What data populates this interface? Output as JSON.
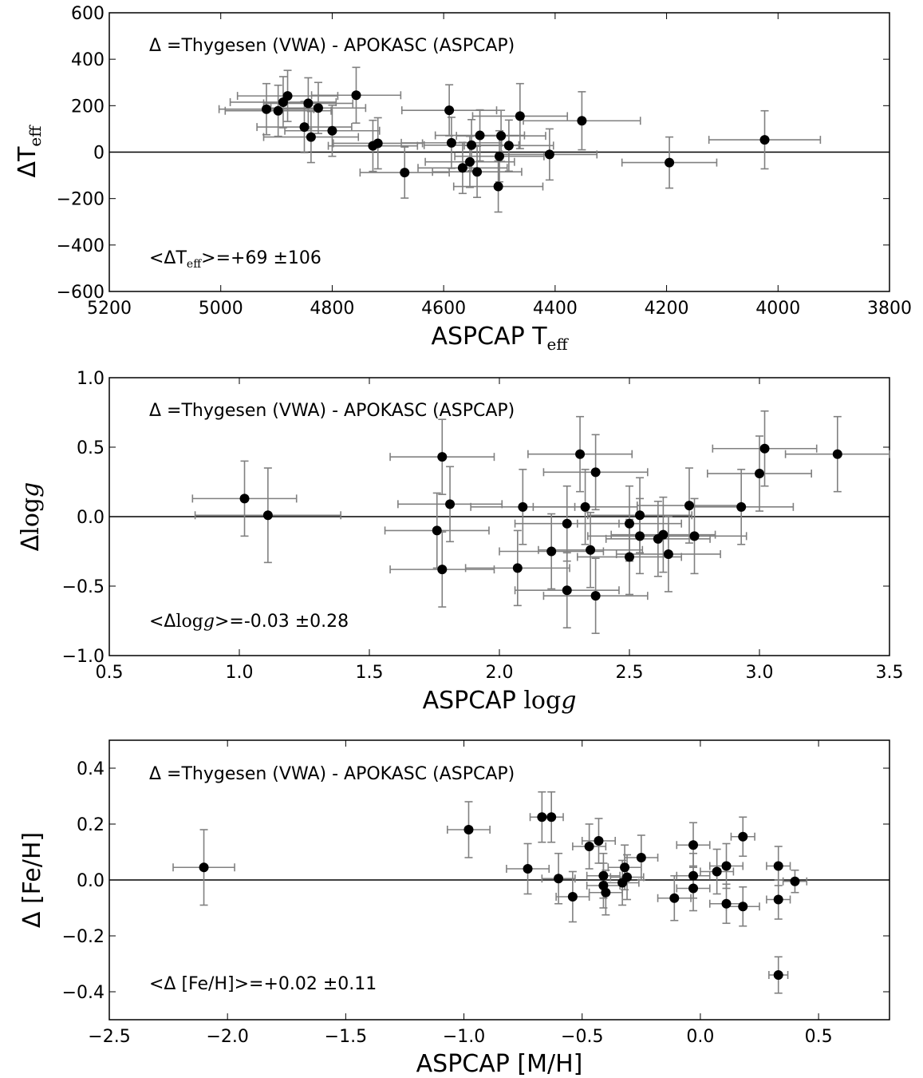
{
  "chart_data": [
    {
      "type": "scatter",
      "xlabel_parts": [
        "ASPCAP T",
        "eff"
      ],
      "ylabel_parts": [
        "ΔT",
        "eff"
      ],
      "xlim": [
        5200,
        3800
      ],
      "ylim": [
        -600,
        600
      ],
      "xticks": [
        5200,
        5000,
        4800,
        4600,
        4400,
        4200,
        4000,
        3800
      ],
      "xtick_labels": [
        "5200",
        "5000",
        "4800",
        "4600",
        "4400",
        "4200",
        "4000",
        "3800"
      ],
      "yticks": [
        -600,
        -400,
        -200,
        0,
        200,
        400,
        600
      ],
      "ytick_labels": [
        "−600",
        "−400",
        "−200",
        "0",
        "200",
        "400",
        "600"
      ],
      "reference_line": 0,
      "annotation": "Δ =Thygesen (VWA) - APOKASC (ASPCAP)",
      "mean_text_parts": [
        "<ΔT",
        "eff",
        ">=+69 ±106"
      ],
      "points": [
        {
          "x": 4918,
          "y": 185,
          "xerr": 85,
          "yerr": 110
        },
        {
          "x": 4897,
          "y": 178,
          "xerr": 95,
          "yerr": 110
        },
        {
          "x": 4888,
          "y": 215,
          "xerr": 95,
          "yerr": 110
        },
        {
          "x": 4880,
          "y": 242,
          "xerr": 90,
          "yerr": 110
        },
        {
          "x": 4850,
          "y": 108,
          "xerr": 85,
          "yerr": 110
        },
        {
          "x": 4843,
          "y": 210,
          "xerr": 80,
          "yerr": 110
        },
        {
          "x": 4838,
          "y": 65,
          "xerr": 85,
          "yerr": 110
        },
        {
          "x": 4825,
          "y": 190,
          "xerr": 85,
          "yerr": 110
        },
        {
          "x": 4800,
          "y": 92,
          "xerr": 85,
          "yerr": 110
        },
        {
          "x": 4757,
          "y": 245,
          "xerr": 80,
          "yerr": 120
        },
        {
          "x": 4727,
          "y": 27,
          "xerr": 80,
          "yerr": 110
        },
        {
          "x": 4718,
          "y": 38,
          "xerr": 80,
          "yerr": 110
        },
        {
          "x": 4670,
          "y": -88,
          "xerr": 80,
          "yerr": 110
        },
        {
          "x": 4590,
          "y": 180,
          "xerr": 85,
          "yerr": 110
        },
        {
          "x": 4586,
          "y": 40,
          "xerr": 90,
          "yerr": 110
        },
        {
          "x": 4566,
          "y": -68,
          "xerr": 80,
          "yerr": 110
        },
        {
          "x": 4553,
          "y": -42,
          "xerr": 80,
          "yerr": 110
        },
        {
          "x": 4550,
          "y": 30,
          "xerr": 85,
          "yerr": 110
        },
        {
          "x": 4540,
          "y": -85,
          "xerr": 80,
          "yerr": 110
        },
        {
          "x": 4535,
          "y": 72,
          "xerr": 80,
          "yerr": 110
        },
        {
          "x": 4502,
          "y": -148,
          "xerr": 80,
          "yerr": 110
        },
        {
          "x": 4500,
          "y": -18,
          "xerr": 80,
          "yerr": 110
        },
        {
          "x": 4497,
          "y": 70,
          "xerr": 80,
          "yerr": 110
        },
        {
          "x": 4483,
          "y": 28,
          "xerr": 80,
          "yerr": 110
        },
        {
          "x": 4463,
          "y": 155,
          "xerr": 85,
          "yerr": 140
        },
        {
          "x": 4410,
          "y": -10,
          "xerr": 85,
          "yerr": 110
        },
        {
          "x": 4352,
          "y": 135,
          "xerr": 105,
          "yerr": 125
        },
        {
          "x": 4195,
          "y": -45,
          "xerr": 85,
          "yerr": 110
        },
        {
          "x": 4024,
          "y": 53,
          "xerr": 100,
          "yerr": 125
        }
      ]
    },
    {
      "type": "scatter",
      "xlabel_parts": [
        "ASPCAP ",
        "log",
        "g"
      ],
      "ylabel_parts": [
        "Δ",
        "log",
        "g"
      ],
      "xlim": [
        0.5,
        3.5
      ],
      "ylim": [
        -1.0,
        1.0
      ],
      "xticks": [
        0.5,
        1.0,
        1.5,
        2.0,
        2.5,
        3.0,
        3.5
      ],
      "xtick_labels": [
        "0.5",
        "1.0",
        "1.5",
        "2.0",
        "2.5",
        "3.0",
        "3.5"
      ],
      "yticks": [
        -1.0,
        -0.5,
        0.0,
        0.5,
        1.0
      ],
      "ytick_labels": [
        "−1.0",
        "−0.5",
        "0.0",
        "0.5",
        "1.0"
      ],
      "reference_line": 0,
      "annotation": "Δ =Thygesen (VWA) - APOKASC (ASPCAP)",
      "mean_text_parts": [
        "<Δ",
        "log",
        "g",
        ">=-0.03 ±0.28"
      ],
      "points": [
        {
          "x": 1.02,
          "y": 0.13,
          "xerr": 0.2,
          "yerr": 0.27
        },
        {
          "x": 1.11,
          "y": 0.01,
          "xerr": 0.28,
          "yerr": 0.34
        },
        {
          "x": 1.76,
          "y": -0.1,
          "xerr": 0.2,
          "yerr": 0.27
        },
        {
          "x": 1.78,
          "y": 0.43,
          "xerr": 0.2,
          "yerr": 0.27
        },
        {
          "x": 1.78,
          "y": -0.38,
          "xerr": 0.2,
          "yerr": 0.27
        },
        {
          "x": 1.81,
          "y": 0.09,
          "xerr": 0.2,
          "yerr": 0.27
        },
        {
          "x": 2.07,
          "y": -0.37,
          "xerr": 0.2,
          "yerr": 0.27
        },
        {
          "x": 2.09,
          "y": 0.07,
          "xerr": 0.2,
          "yerr": 0.27
        },
        {
          "x": 2.2,
          "y": -0.25,
          "xerr": 0.2,
          "yerr": 0.27
        },
        {
          "x": 2.26,
          "y": -0.05,
          "xerr": 0.2,
          "yerr": 0.27
        },
        {
          "x": 2.26,
          "y": -0.53,
          "xerr": 0.2,
          "yerr": 0.27
        },
        {
          "x": 2.31,
          "y": 0.45,
          "xerr": 0.2,
          "yerr": 0.27
        },
        {
          "x": 2.33,
          "y": 0.07,
          "xerr": 0.2,
          "yerr": 0.27
        },
        {
          "x": 2.35,
          "y": -0.24,
          "xerr": 0.2,
          "yerr": 0.27
        },
        {
          "x": 2.37,
          "y": 0.32,
          "xerr": 0.2,
          "yerr": 0.27
        },
        {
          "x": 2.37,
          "y": -0.57,
          "xerr": 0.2,
          "yerr": 0.27
        },
        {
          "x": 2.5,
          "y": -0.05,
          "xerr": 0.2,
          "yerr": 0.27
        },
        {
          "x": 2.5,
          "y": -0.29,
          "xerr": 0.2,
          "yerr": 0.27
        },
        {
          "x": 2.54,
          "y": 0.01,
          "xerr": 0.2,
          "yerr": 0.27
        },
        {
          "x": 2.54,
          "y": -0.14,
          "xerr": 0.2,
          "yerr": 0.27
        },
        {
          "x": 2.61,
          "y": -0.16,
          "xerr": 0.2,
          "yerr": 0.27
        },
        {
          "x": 2.63,
          "y": -0.13,
          "xerr": 0.2,
          "yerr": 0.27
        },
        {
          "x": 2.65,
          "y": -0.27,
          "xerr": 0.2,
          "yerr": 0.27
        },
        {
          "x": 2.73,
          "y": 0.08,
          "xerr": 0.2,
          "yerr": 0.27
        },
        {
          "x": 2.75,
          "y": -0.14,
          "xerr": 0.2,
          "yerr": 0.27
        },
        {
          "x": 2.93,
          "y": 0.07,
          "xerr": 0.2,
          "yerr": 0.27
        },
        {
          "x": 3.0,
          "y": 0.31,
          "xerr": 0.2,
          "yerr": 0.27
        },
        {
          "x": 3.02,
          "y": 0.49,
          "xerr": 0.2,
          "yerr": 0.27
        },
        {
          "x": 3.3,
          "y": 0.45,
          "xerr": 0.2,
          "yerr": 0.27
        }
      ]
    },
    {
      "type": "scatter",
      "xlabel_parts": [
        "ASPCAP [M/H]"
      ],
      "ylabel_parts": [
        "Δ [Fe/H]"
      ],
      "xlim": [
        -2.5,
        0.8
      ],
      "ylim": [
        -0.5,
        0.5
      ],
      "xticks": [
        -2.5,
        -2.0,
        -1.5,
        -1.0,
        -0.5,
        0.0,
        0.5
      ],
      "xtick_labels": [
        "−2.5",
        "−2.0",
        "−1.5",
        "−1.0",
        "−0.5",
        "0.0",
        "0.5"
      ],
      "yticks": [
        -0.4,
        -0.2,
        0.0,
        0.2,
        0.4
      ],
      "ytick_labels": [
        "−0.4",
        "−0.2",
        "0.0",
        "0.2",
        "0.4"
      ],
      "reference_line": 0,
      "annotation": "Δ =Thygesen (VWA) - APOKASC (ASPCAP)",
      "mean_text_parts": [
        "<Δ [Fe/H]>=+0.02 ±0.11"
      ],
      "points": [
        {
          "x": -2.1,
          "y": 0.045,
          "xerr": 0.13,
          "yerr": 0.135
        },
        {
          "x": -0.98,
          "y": 0.18,
          "xerr": 0.09,
          "yerr": 0.1
        },
        {
          "x": -0.73,
          "y": 0.04,
          "xerr": 0.09,
          "yerr": 0.09
        },
        {
          "x": -0.67,
          "y": 0.225,
          "xerr": 0.05,
          "yerr": 0.09
        },
        {
          "x": -0.63,
          "y": 0.225,
          "xerr": 0.05,
          "yerr": 0.09
        },
        {
          "x": -0.6,
          "y": 0.005,
          "xerr": 0.07,
          "yerr": 0.09
        },
        {
          "x": -0.54,
          "y": -0.06,
          "xerr": 0.07,
          "yerr": 0.09
        },
        {
          "x": -0.47,
          "y": 0.12,
          "xerr": 0.07,
          "yerr": 0.08
        },
        {
          "x": -0.43,
          "y": 0.14,
          "xerr": 0.07,
          "yerr": 0.08
        },
        {
          "x": -0.41,
          "y": 0.015,
          "xerr": 0.07,
          "yerr": 0.08
        },
        {
          "x": -0.41,
          "y": -0.02,
          "xerr": 0.07,
          "yerr": 0.08
        },
        {
          "x": -0.4,
          "y": -0.045,
          "xerr": 0.07,
          "yerr": 0.08
        },
        {
          "x": -0.33,
          "y": -0.01,
          "xerr": 0.07,
          "yerr": 0.08
        },
        {
          "x": -0.32,
          "y": 0.045,
          "xerr": 0.07,
          "yerr": 0.08
        },
        {
          "x": -0.31,
          "y": 0.01,
          "xerr": 0.07,
          "yerr": 0.08
        },
        {
          "x": -0.25,
          "y": 0.08,
          "xerr": 0.07,
          "yerr": 0.08
        },
        {
          "x": -0.11,
          "y": -0.065,
          "xerr": 0.07,
          "yerr": 0.08
        },
        {
          "x": -0.03,
          "y": 0.125,
          "xerr": 0.07,
          "yerr": 0.08
        },
        {
          "x": -0.03,
          "y": 0.015,
          "xerr": 0.07,
          "yerr": 0.08
        },
        {
          "x": -0.03,
          "y": -0.03,
          "xerr": 0.07,
          "yerr": 0.08
        },
        {
          "x": 0.07,
          "y": 0.03,
          "xerr": 0.07,
          "yerr": 0.08
        },
        {
          "x": 0.11,
          "y": 0.05,
          "xerr": 0.07,
          "yerr": 0.08
        },
        {
          "x": 0.11,
          "y": -0.085,
          "xerr": 0.07,
          "yerr": 0.07
        },
        {
          "x": 0.18,
          "y": 0.155,
          "xerr": 0.05,
          "yerr": 0.07
        },
        {
          "x": 0.18,
          "y": -0.095,
          "xerr": 0.07,
          "yerr": 0.07
        },
        {
          "x": 0.33,
          "y": 0.05,
          "xerr": 0.05,
          "yerr": 0.07
        },
        {
          "x": 0.33,
          "y": -0.07,
          "xerr": 0.05,
          "yerr": 0.07
        },
        {
          "x": 0.33,
          "y": -0.34,
          "xerr": 0.04,
          "yerr": 0.065
        },
        {
          "x": 0.4,
          "y": -0.005,
          "xerr": 0.05,
          "yerr": 0.04
        }
      ]
    }
  ]
}
